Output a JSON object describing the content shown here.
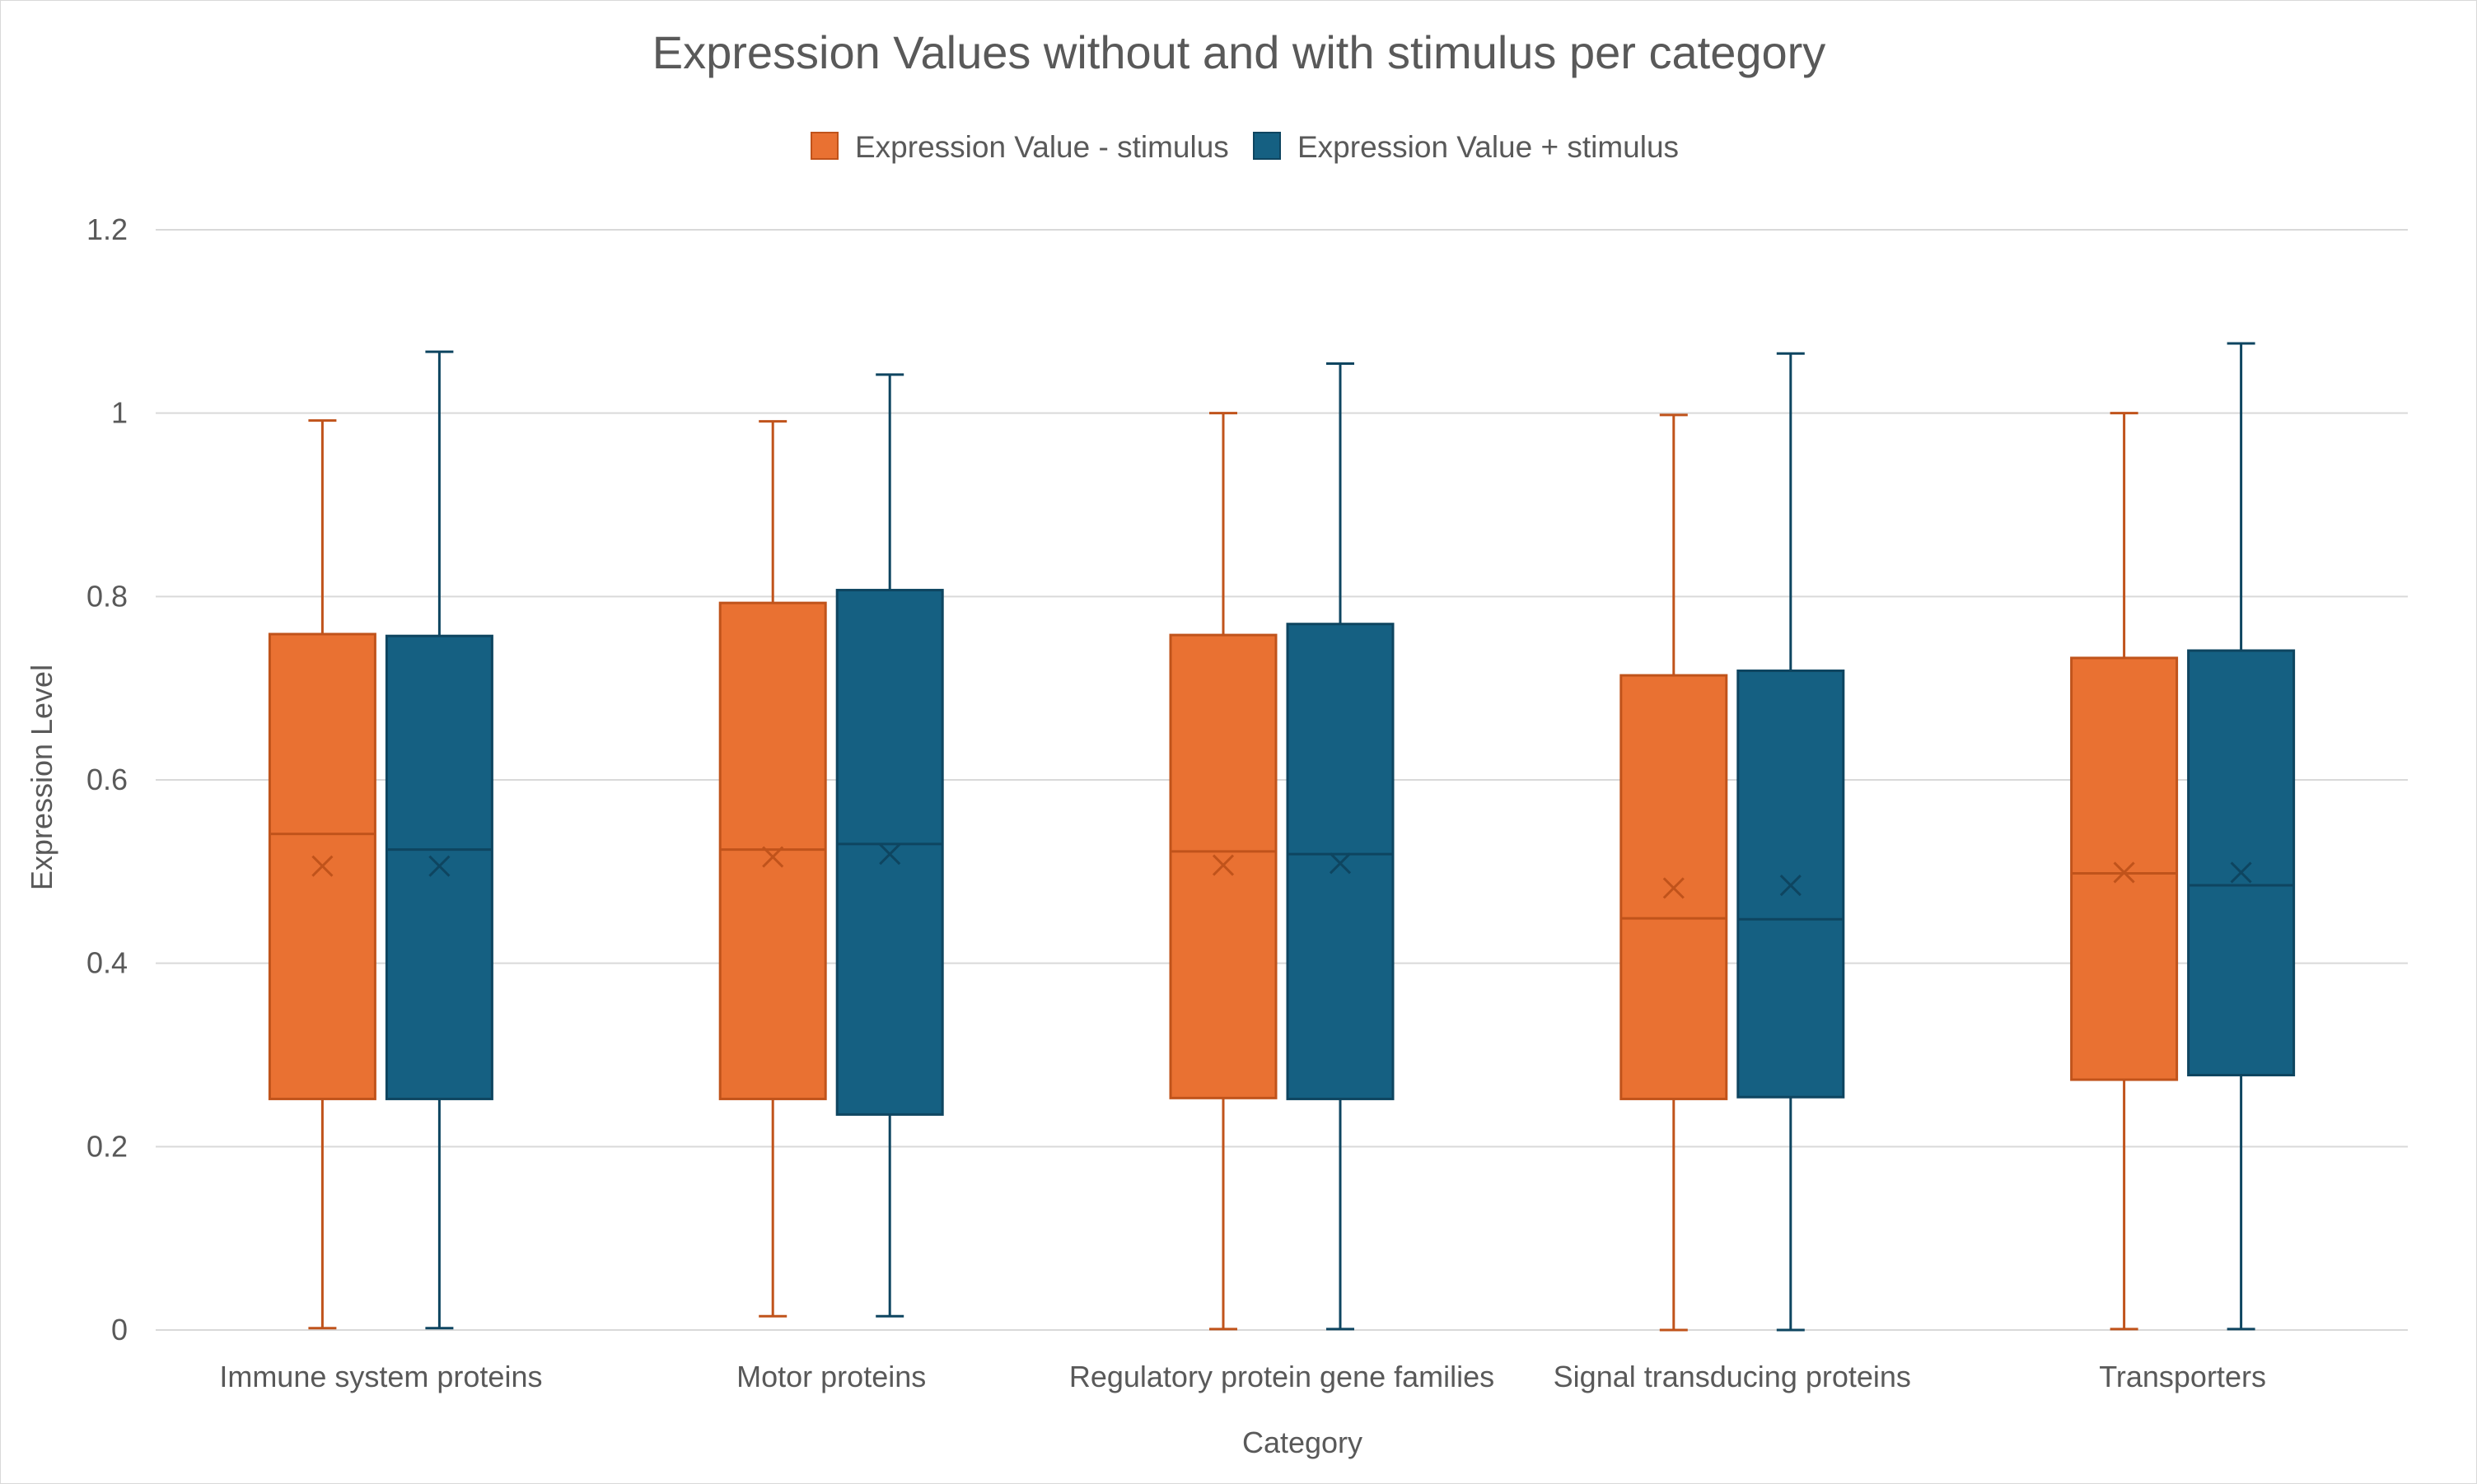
{
  "chart_data": {
    "type": "box",
    "title": "Expression Values without and with stimulus per category",
    "xlabel": "Category",
    "ylabel": "Expression Level",
    "ylim": [
      0,
      1.2
    ],
    "yticks": [
      0,
      0.2,
      0.4,
      0.6,
      0.8,
      1,
      1.2
    ],
    "ytick_labels": [
      "0",
      "0.2",
      "0.4",
      "0.6",
      "0.8",
      "1",
      "1.2"
    ],
    "grid": true,
    "legend_position": "top",
    "categories": [
      "Immune system proteins",
      "Motor proteins",
      "Regulatory protein gene families",
      "Signal transducing proteins",
      "Transporters"
    ],
    "series": [
      {
        "name": "Expression Value - stimulus",
        "color": "#E97132",
        "edge_color": "#C0531B",
        "boxes": [
          {
            "min": 0.002,
            "q1": 0.252,
            "median": 0.541,
            "q3": 0.759,
            "max": 0.992,
            "mean": 0.506
          },
          {
            "min": 0.015,
            "q1": 0.252,
            "median": 0.524,
            "q3": 0.793,
            "max": 0.991,
            "mean": 0.516
          },
          {
            "min": 0.001,
            "q1": 0.253,
            "median": 0.522,
            "q3": 0.758,
            "max": 1.0,
            "mean": 0.507
          },
          {
            "min": 0.0,
            "q1": 0.252,
            "median": 0.449,
            "q3": 0.714,
            "max": 0.998,
            "mean": 0.482
          },
          {
            "min": 0.001,
            "q1": 0.273,
            "median": 0.498,
            "q3": 0.733,
            "max": 1.0,
            "mean": 0.499
          }
        ]
      },
      {
        "name": "Expression Value + stimulus",
        "color": "#156082",
        "edge_color": "#0E4560",
        "boxes": [
          {
            "min": 0.002,
            "q1": 0.252,
            "median": 0.524,
            "q3": 0.757,
            "max": 1.067,
            "mean": 0.506
          },
          {
            "min": 0.015,
            "q1": 0.235,
            "median": 0.53,
            "q3": 0.807,
            "max": 1.042,
            "mean": 0.519
          },
          {
            "min": 0.001,
            "q1": 0.252,
            "median": 0.519,
            "q3": 0.77,
            "max": 1.054,
            "mean": 0.509
          },
          {
            "min": 0.0,
            "q1": 0.254,
            "median": 0.448,
            "q3": 0.719,
            "max": 1.065,
            "mean": 0.485
          },
          {
            "min": 0.001,
            "q1": 0.278,
            "median": 0.485,
            "q3": 0.741,
            "max": 1.076,
            "mean": 0.499
          }
        ]
      }
    ]
  }
}
